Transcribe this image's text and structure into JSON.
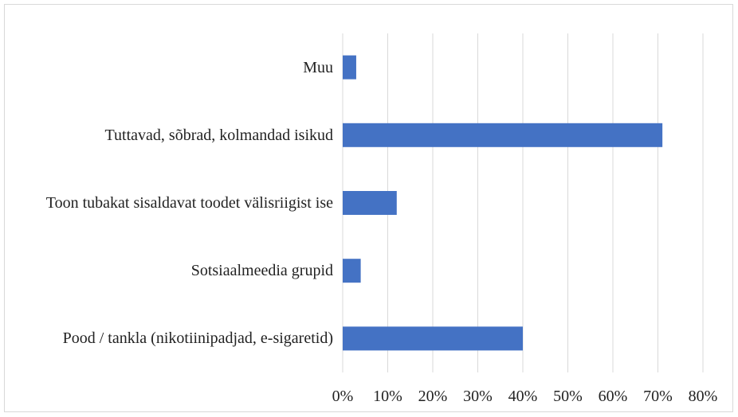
{
  "chart_data": {
    "type": "bar",
    "orientation": "horizontal",
    "categories": [
      "Muu",
      "Tuttavad, sõbrad, kolmandad isikud",
      "Toon tubakat sisaldavat toodet välisriigist ise",
      "Sotsiaalmeedia grupid",
      "Pood / tankla (nikotiinipadjad, e-sigaretid)"
    ],
    "values": [
      3,
      71,
      12,
      4,
      40
    ],
    "color": "#4472c4",
    "xlim": [
      0,
      80
    ],
    "xticks": [
      {
        "value": 0,
        "label": "0%"
      },
      {
        "value": 10,
        "label": "10%"
      },
      {
        "value": 20,
        "label": "20%"
      },
      {
        "value": 30,
        "label": "30%"
      },
      {
        "value": 40,
        "label": "40%"
      },
      {
        "value": 50,
        "label": "50%"
      },
      {
        "value": 60,
        "label": "60%"
      },
      {
        "value": 70,
        "label": "70%"
      },
      {
        "value": 80,
        "label": "80%"
      }
    ],
    "grid": true
  }
}
